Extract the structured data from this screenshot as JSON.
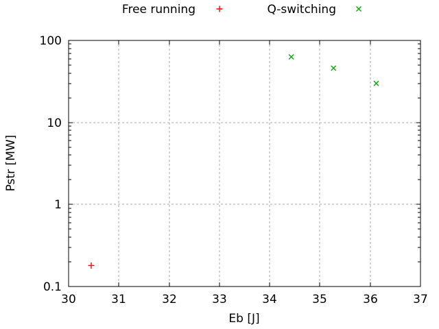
{
  "chart_data": {
    "type": "scatter",
    "title": "",
    "xlabel": "Eb [J]",
    "ylabel": "Pstr [MW]",
    "x_axis": {
      "scale": "linear",
      "min": 30,
      "max": 37,
      "ticks": [
        30,
        31,
        32,
        33,
        34,
        35,
        36,
        37
      ]
    },
    "y_axis": {
      "scale": "log",
      "min": 0.1,
      "max": 100,
      "ticks": [
        0.1,
        1,
        10,
        100
      ],
      "tick_labels": [
        "0.1",
        "1",
        "10",
        "100"
      ]
    },
    "grid": true,
    "legend_position": "top-center-outside",
    "series": [
      {
        "name": "Free running",
        "marker": "plus",
        "color": "#ff0000",
        "points": [
          [
            30.45,
            0.18
          ]
        ]
      },
      {
        "name": "Q-switching",
        "marker": "cross",
        "color": "#00aa00",
        "points": [
          [
            34.43,
            63
          ],
          [
            35.27,
            46
          ],
          [
            36.12,
            30
          ]
        ]
      }
    ]
  },
  "colors": {
    "background": "#ffffff",
    "border": "#000000",
    "grid": "#a8a8a8",
    "text": "#000000"
  }
}
